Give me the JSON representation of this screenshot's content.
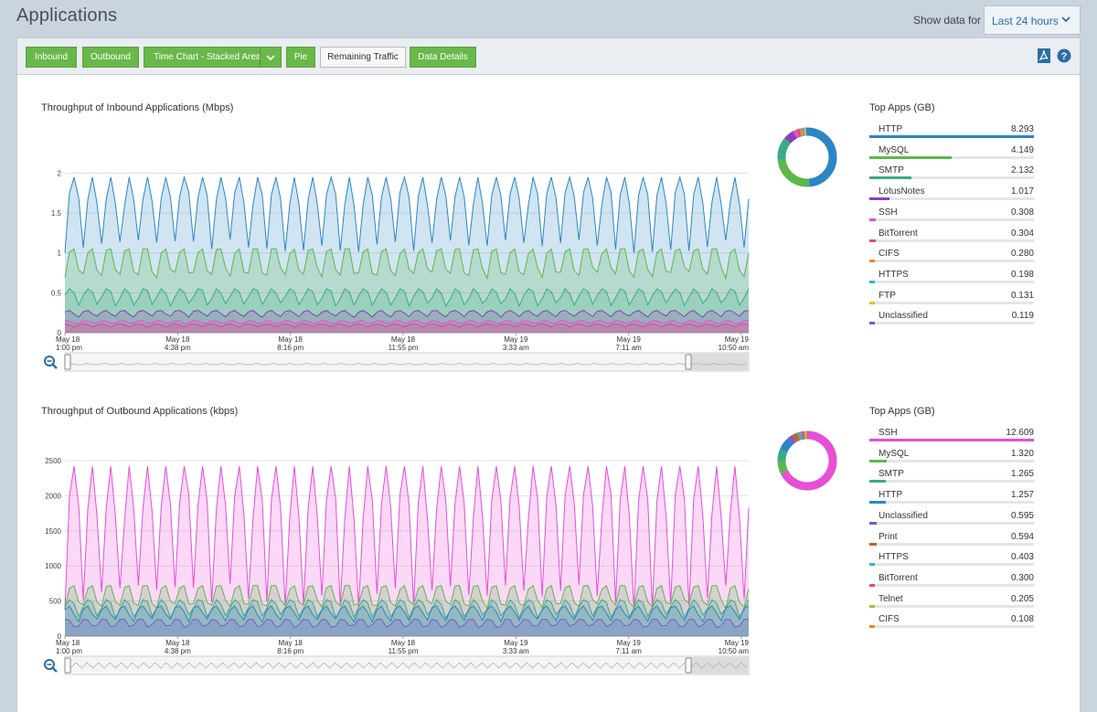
{
  "header": {
    "title": "Applications",
    "show_label": "Show data for",
    "range": "Last 24 hours"
  },
  "toolbar": {
    "buttons": [
      "Inbound",
      "Outbound",
      "Time Chart - Stacked Area",
      "Pie",
      "Remaining Traffic",
      "Data Details"
    ]
  },
  "icons": [
    "pdf-icon",
    "help-icon",
    "zoom-out-icon",
    "chevron-down-icon"
  ],
  "colors": {
    "accent_green": "#69b84a",
    "link_blue": "#2a6ea6",
    "http": "#2b86c5",
    "mysql": "#5db84a",
    "smtp": "#3aaa8a",
    "lotusnotes": "#8b3fb8",
    "ssh": "#e64fd6",
    "bittorrent": "#e8477a",
    "cifs": "#e6892d",
    "https": "#36b6c6",
    "ftp": "#e3c21c",
    "unclassified": "#6f5fd0",
    "print": "#c7612a",
    "telnet": "#9bc43b"
  },
  "inbound": {
    "title": "Throughput of Inbound Applications (Mbps)",
    "topapps_title": "Top Apps (GB)",
    "apps": [
      {
        "name": "HTTP",
        "value": "8.293",
        "color": "#2b86c5"
      },
      {
        "name": "MySQL",
        "value": "4.149",
        "color": "#5db84a"
      },
      {
        "name": "SMTP",
        "value": "2.132",
        "color": "#3aaa8a"
      },
      {
        "name": "LotusNotes",
        "value": "1.017",
        "color": "#8b3fb8"
      },
      {
        "name": "SSH",
        "value": "0.308",
        "color": "#e64fd6"
      },
      {
        "name": "BitTorrent",
        "value": "0.304",
        "color": "#e8477a"
      },
      {
        "name": "CIFS",
        "value": "0.280",
        "color": "#e6892d"
      },
      {
        "name": "HTTPS",
        "value": "0.198",
        "color": "#36b6c6"
      },
      {
        "name": "FTP",
        "value": "0.131",
        "color": "#e3c21c"
      },
      {
        "name": "Unclassified",
        "value": "0.119",
        "color": "#6f5fd0"
      }
    ]
  },
  "outbound": {
    "title": "Throughput of Outbound Applications (kbps)",
    "topapps_title": "Top Apps (GB)",
    "apps": [
      {
        "name": "SSH",
        "value": "12.609",
        "color": "#e64fd6"
      },
      {
        "name": "MySQL",
        "value": "1.320",
        "color": "#5db84a"
      },
      {
        "name": "SMTP",
        "value": "1.265",
        "color": "#3aaa8a"
      },
      {
        "name": "HTTP",
        "value": "1.257",
        "color": "#2b86c5"
      },
      {
        "name": "Unclassified",
        "value": "0.595",
        "color": "#6f5fd0"
      },
      {
        "name": "Print",
        "value": "0.594",
        "color": "#c7612a"
      },
      {
        "name": "HTTPS",
        "value": "0.403",
        "color": "#36b6c6"
      },
      {
        "name": "BitTorrent",
        "value": "0.300",
        "color": "#e8477a"
      },
      {
        "name": "Telnet",
        "value": "0.205",
        "color": "#9bc43b"
      },
      {
        "name": "CIFS",
        "value": "0.108",
        "color": "#e6892d"
      }
    ]
  },
  "chart_data": [
    {
      "type": "area",
      "title": "Throughput of Inbound Applications (Mbps)",
      "ylim": [
        0,
        2.2
      ],
      "yticks": [
        "0",
        "0.5",
        "1",
        "1.5",
        "2"
      ],
      "x_ticks": [
        {
          "date": "May 18",
          "time": "1:00 pm"
        },
        {
          "date": "May 18",
          "time": "4:38 pm"
        },
        {
          "date": "May 18",
          "time": "8:16 pm"
        },
        {
          "date": "May 18",
          "time": "11:55 pm"
        },
        {
          "date": "May 19",
          "time": "3:33 am"
        },
        {
          "date": "May 19",
          "time": "7:11 am"
        },
        {
          "date": "May 19",
          "time": "10:50 am"
        }
      ],
      "series": [
        {
          "name": "HTTP",
          "peak": 1.95,
          "trough": 1.0
        },
        {
          "name": "MySQL",
          "peak": 1.05,
          "trough": 0.55
        },
        {
          "name": "SMTP",
          "peak": 0.55,
          "trough": 0.3
        },
        {
          "name": "LotusNotes",
          "peak": 0.28,
          "trough": 0.18
        },
        {
          "name": "SSH",
          "peak": 0.15,
          "trough": 0.1
        },
        {
          "name": "BitTorrent",
          "peak": 0.11,
          "trough": 0.07
        }
      ],
      "grid": true
    },
    {
      "type": "area",
      "title": "Throughput of Outbound Applications (kbps)",
      "ylim": [
        0,
        2500
      ],
      "yticks": [
        "0",
        "500",
        "1000",
        "1500",
        "2000",
        "2500"
      ],
      "x_ticks": [
        {
          "date": "May 18",
          "time": "1:00 pm"
        },
        {
          "date": "May 18",
          "time": "4:38 pm"
        },
        {
          "date": "May 18",
          "time": "8:16 pm"
        },
        {
          "date": "May 18",
          "time": "11:55 pm"
        },
        {
          "date": "May 19",
          "time": "3:33 am"
        },
        {
          "date": "May 19",
          "time": "7:11 am"
        },
        {
          "date": "May 19",
          "time": "10:50 am"
        }
      ],
      "series": [
        {
          "name": "SSH",
          "peak": 2420,
          "trough": 380
        },
        {
          "name": "MySQL",
          "peak": 720,
          "trough": 280
        },
        {
          "name": "SMTP",
          "peak": 520,
          "trough": 220
        },
        {
          "name": "HTTP",
          "peak": 430,
          "trough": 170
        },
        {
          "name": "Unclassified",
          "peak": 240,
          "trough": 80
        }
      ],
      "grid": true
    },
    {
      "type": "pie",
      "title": "",
      "labels": [
        "HTTP",
        "MySQL",
        "SMTP",
        "LotusNotes",
        "SSH",
        "BitTorrent",
        "CIFS",
        "HTTPS",
        "FTP",
        "Unclassified"
      ],
      "values": [
        8.293,
        4.149,
        2.132,
        1.017,
        0.308,
        0.304,
        0.28,
        0.198,
        0.131,
        0.119
      ]
    },
    {
      "type": "pie",
      "title": "",
      "labels": [
        "SSH",
        "MySQL",
        "SMTP",
        "HTTP",
        "Unclassified",
        "Print",
        "HTTPS",
        "BitTorrent",
        "Telnet",
        "CIFS"
      ],
      "values": [
        12.609,
        1.32,
        1.265,
        1.257,
        0.595,
        0.594,
        0.403,
        0.3,
        0.205,
        0.108
      ]
    }
  ]
}
